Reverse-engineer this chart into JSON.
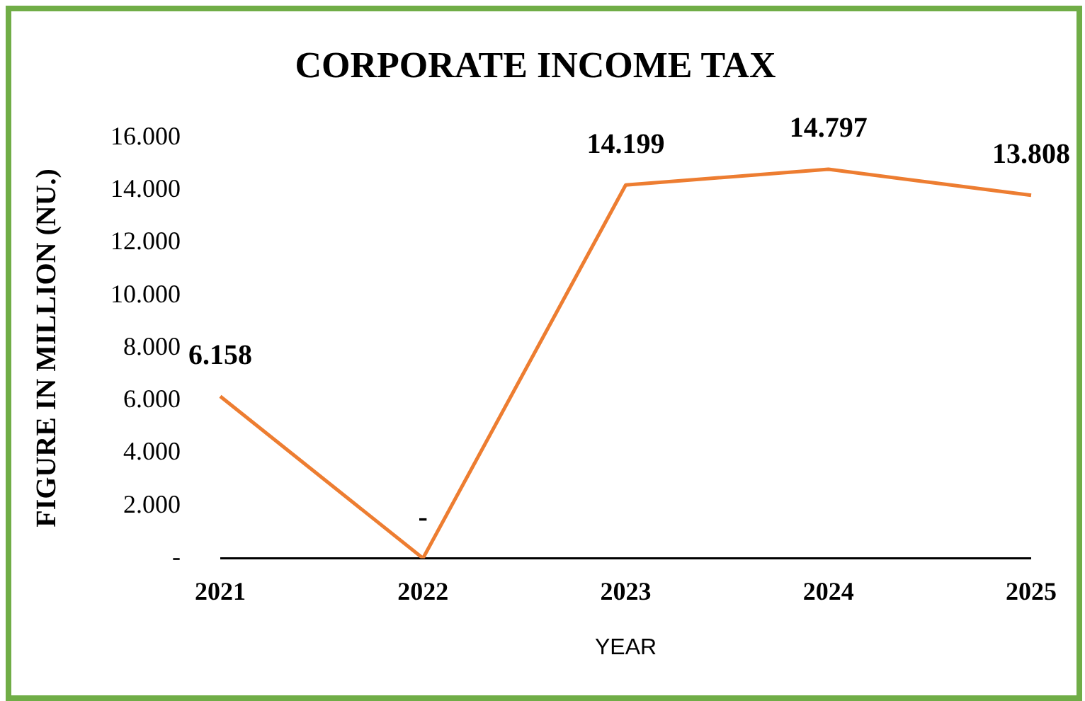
{
  "chart_data": {
    "type": "line",
    "title": "CORPORATE INCOME TAX",
    "xlabel": "YEAR",
    "ylabel": "FIGURE IN MILLION (NU.)",
    "categories": [
      "2021",
      "2022",
      "2023",
      "2024",
      "2025"
    ],
    "series": [
      {
        "color": "#ed7d31",
        "values": [
          6.158,
          0,
          14.199,
          14.797,
          13.808
        ],
        "value_labels": [
          "6.158",
          "-",
          "14.199",
          "14.797",
          "13.808"
        ]
      }
    ],
    "ylim": [
      0,
      16
    ],
    "yticks": [
      {
        "value": 0,
        "label": "-"
      },
      {
        "value": 2,
        "label": "2.000"
      },
      {
        "value": 4,
        "label": "4.000"
      },
      {
        "value": 6,
        "label": "6.000"
      },
      {
        "value": 8,
        "label": "8.000"
      },
      {
        "value": 10,
        "label": "10.000"
      },
      {
        "value": 12,
        "label": "12.000"
      },
      {
        "value": 14,
        "label": "14.000"
      },
      {
        "value": 16,
        "label": "16.000"
      }
    ],
    "grid": false,
    "legend": false,
    "marker": "none",
    "line_style": "solid"
  }
}
